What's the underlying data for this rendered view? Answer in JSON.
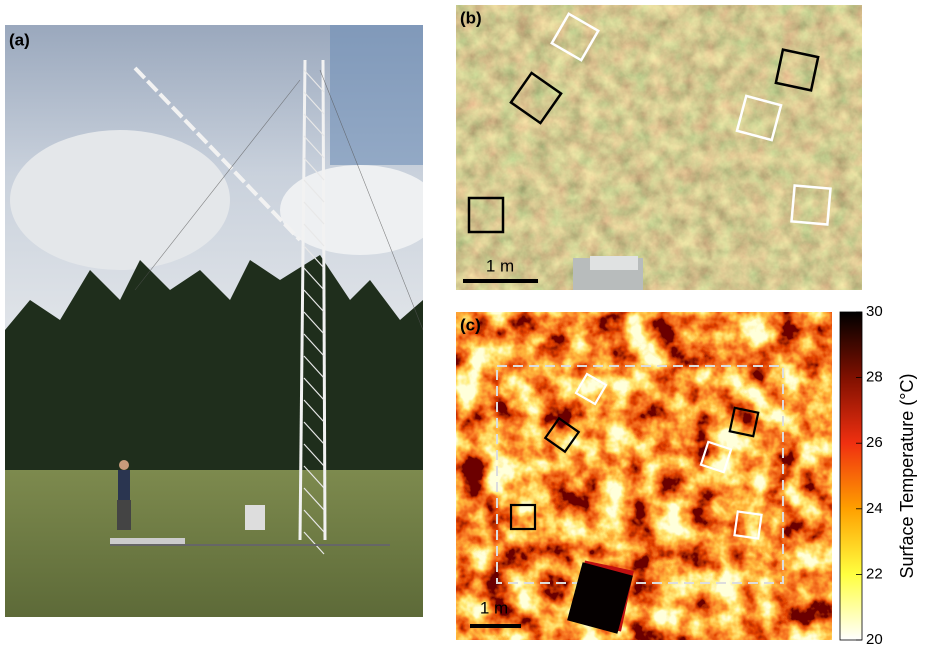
{
  "panels": [
    {
      "label": "(a)"
    },
    {
      "label": "(b)",
      "scale_bar": "1 m"
    },
    {
      "label": "(c)",
      "scale_bar": "1 m"
    }
  ],
  "colorbar": {
    "label": "Surface Temperature (°C)",
    "lim": [
      20,
      30
    ],
    "ticks": [
      20,
      22,
      24,
      26,
      28,
      30
    ]
  }
}
